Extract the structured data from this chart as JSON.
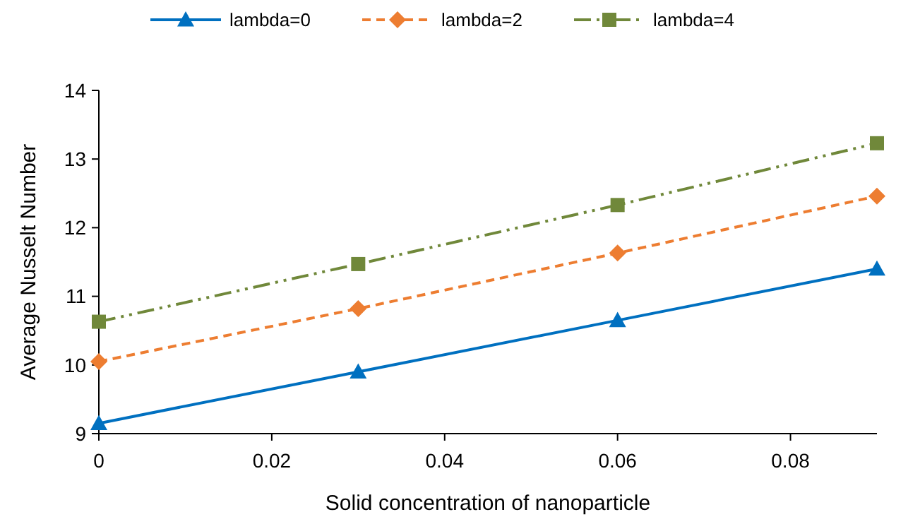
{
  "chart_data": {
    "type": "line",
    "xlabel": "Solid concentration of nanoparticle",
    "ylabel": "Average Nusselt Number",
    "x": [
      0,
      0.03,
      0.06,
      0.09
    ],
    "series": [
      {
        "name": "lambda=0",
        "color": "#0070c0",
        "values": [
          9.15,
          9.9,
          10.65,
          11.4
        ],
        "marker": "triangle",
        "line_style": "solid"
      },
      {
        "name": "lambda=2",
        "color": "#ed7d31",
        "values": [
          10.05,
          10.82,
          11.63,
          12.46
        ],
        "marker": "diamond",
        "line_style": "dashed"
      },
      {
        "name": "lambda=4",
        "color": "#70883a",
        "values": [
          10.63,
          11.47,
          12.33,
          13.23
        ],
        "marker": "square",
        "line_style": "dashdot"
      }
    ],
    "xlim": [
      0,
      0.09
    ],
    "xticks": [
      0,
      0.02,
      0.04,
      0.06,
      0.08
    ],
    "ylim": [
      9,
      14
    ],
    "yticks": [
      9,
      10,
      11,
      12,
      13,
      14
    ],
    "grid": false,
    "legend": "top"
  }
}
